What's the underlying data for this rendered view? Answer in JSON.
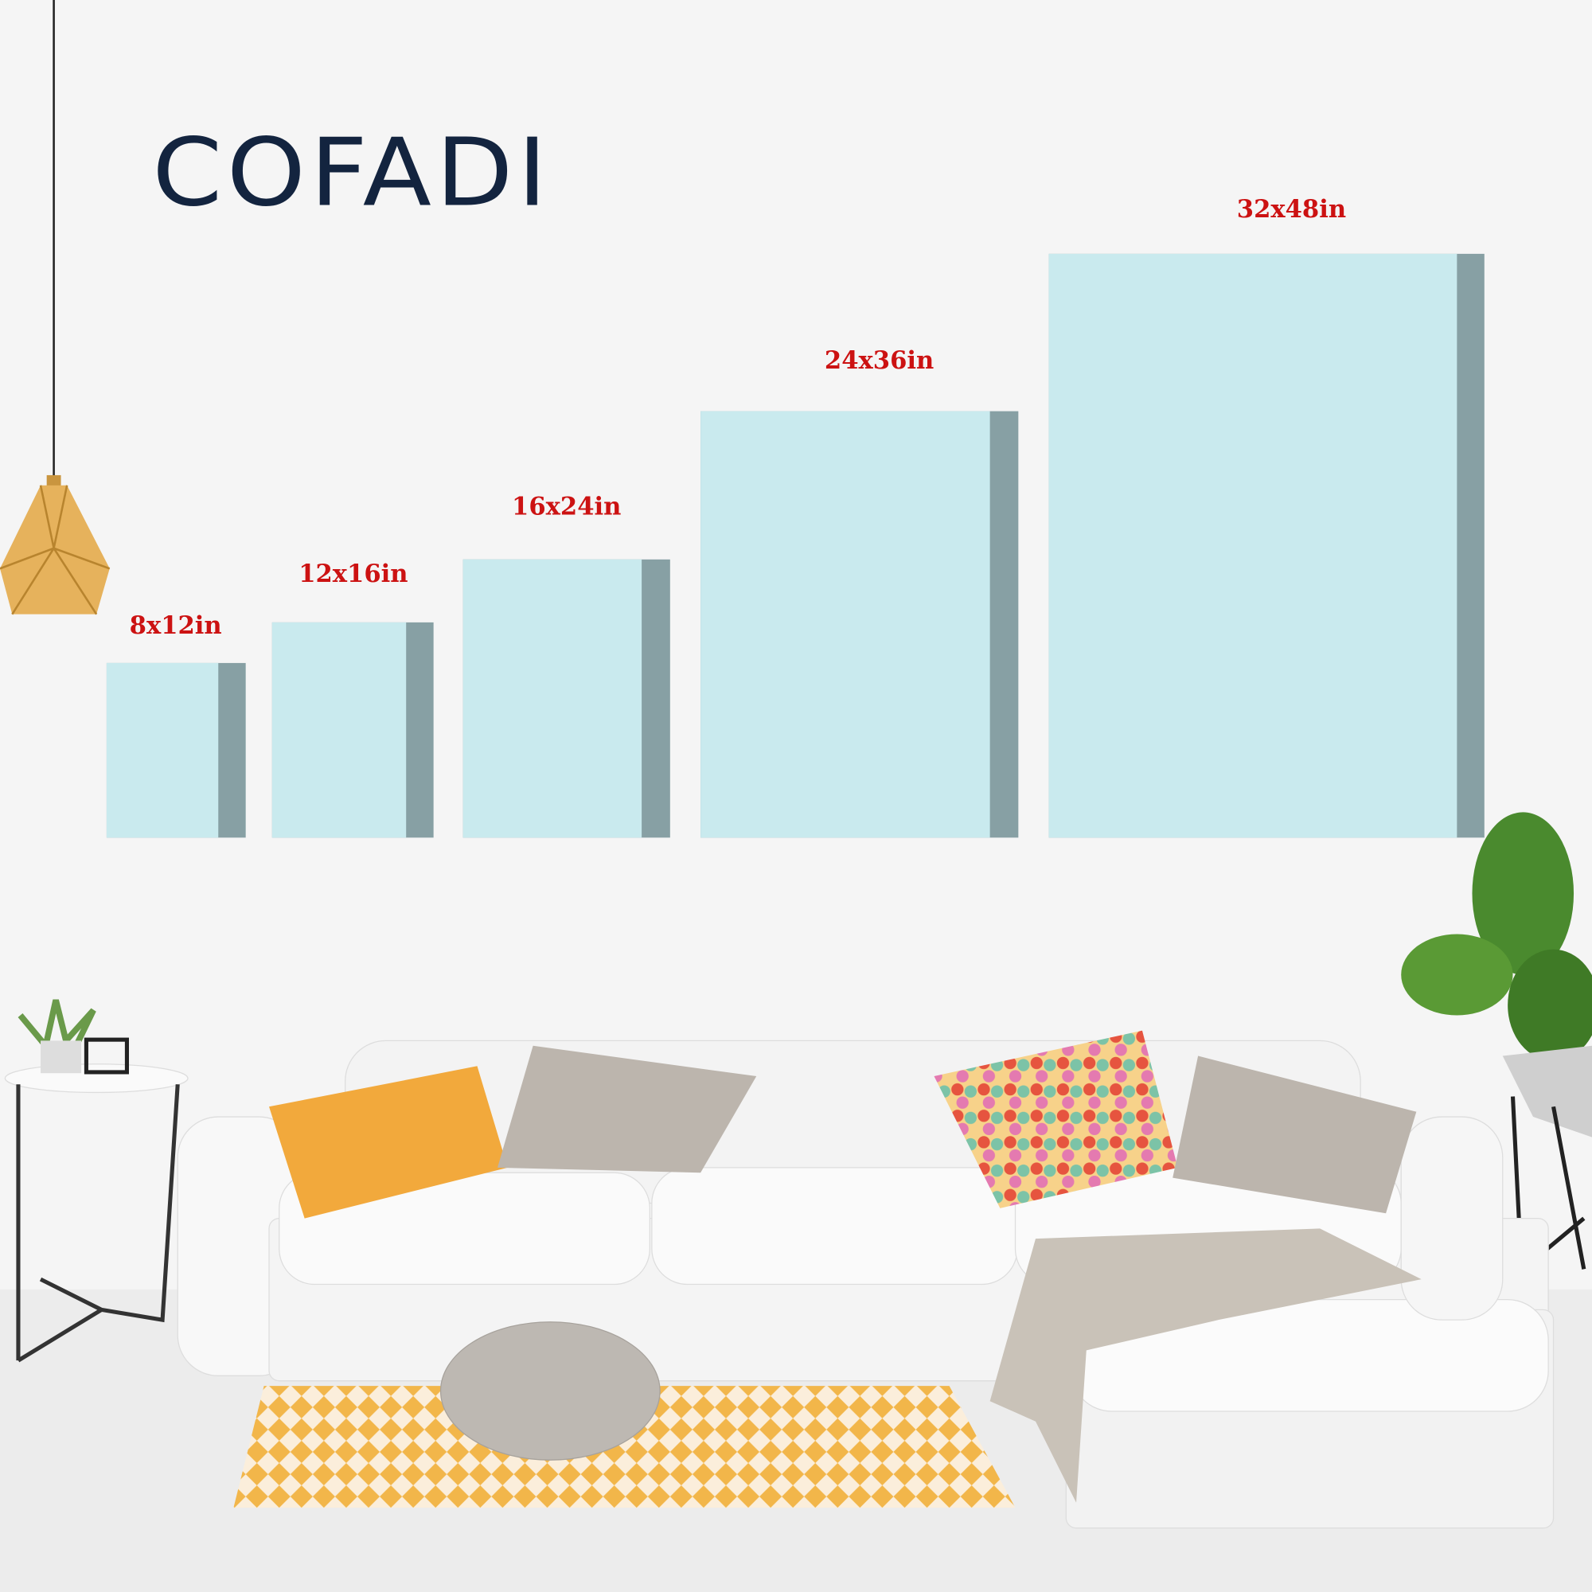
{
  "brand": {
    "logo_text": "COFADI",
    "color": "#13243f"
  },
  "canvas_colors": {
    "face": "#c9eaee",
    "edge": "#87a0a4",
    "label": "#cc1212"
  },
  "canvas_sizes": [
    {
      "label": "8x12in"
    },
    {
      "label": "12x16in"
    },
    {
      "label": "16x24in"
    },
    {
      "label": "24x36in"
    },
    {
      "label": "32x48in"
    }
  ]
}
